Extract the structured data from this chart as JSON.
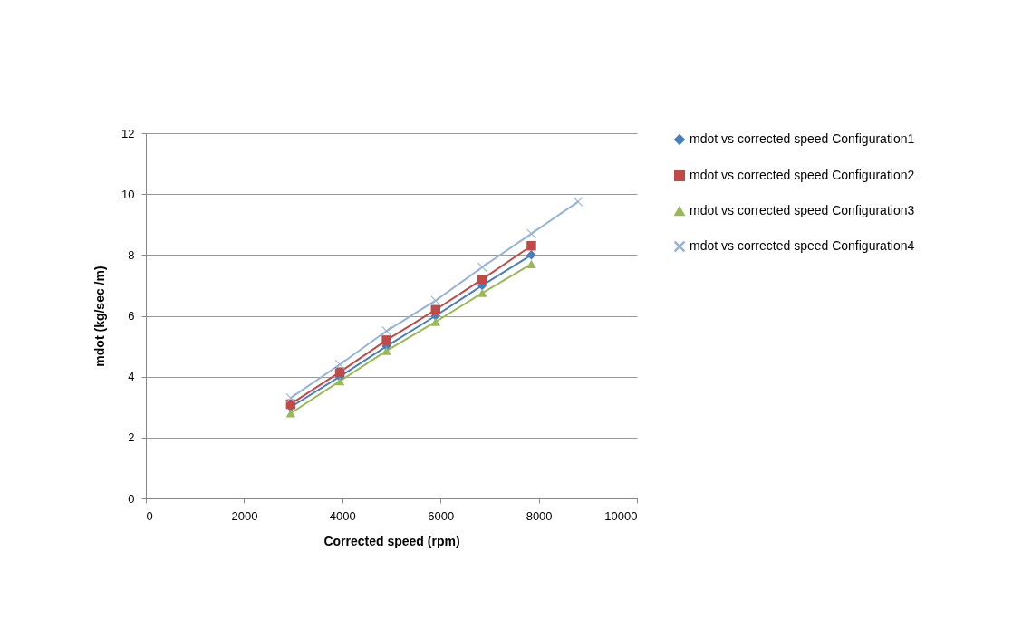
{
  "chart_data": {
    "type": "line",
    "xlabel": "Corrected speed (rpm)",
    "ylabel": "mdot  (kg/sec /m)",
    "x": [
      2950,
      3950,
      4900,
      5900,
      6850,
      7850
    ],
    "series": [
      {
        "name": "mdot vs corrected speed Configuration1",
        "color": "#4a7ebb",
        "marker": "diamond",
        "values": [
          3.0,
          4.0,
          5.0,
          6.0,
          7.0,
          8.0
        ]
      },
      {
        "name": "mdot vs corrected speed Configuration2",
        "color": "#be4b48",
        "marker": "square",
        "values": [
          3.1,
          4.15,
          5.2,
          6.2,
          7.2,
          8.3
        ]
      },
      {
        "name": "mdot vs corrected speed Configuration3",
        "color": "#98b954",
        "marker": "triangle",
        "values": [
          2.8,
          3.85,
          4.85,
          5.8,
          6.75,
          7.7
        ]
      },
      {
        "name": "mdot vs corrected speed Configuration4",
        "color": "#95b3d7",
        "marker": "cross",
        "x": [
          2950,
          3950,
          4900,
          5900,
          6850,
          7850,
          8800
        ],
        "values": [
          3.3,
          4.4,
          5.5,
          6.5,
          7.6,
          8.7,
          9.75
        ]
      }
    ],
    "xlim": [
      0,
      10000
    ],
    "xticks": [
      0,
      2000,
      4000,
      6000,
      8000,
      10000
    ],
    "ylim": [
      0,
      12
    ],
    "yticks": [
      0,
      2,
      4,
      6,
      8,
      10,
      12
    ],
    "grid": "y",
    "legend": "right",
    "line_style": "solid"
  }
}
